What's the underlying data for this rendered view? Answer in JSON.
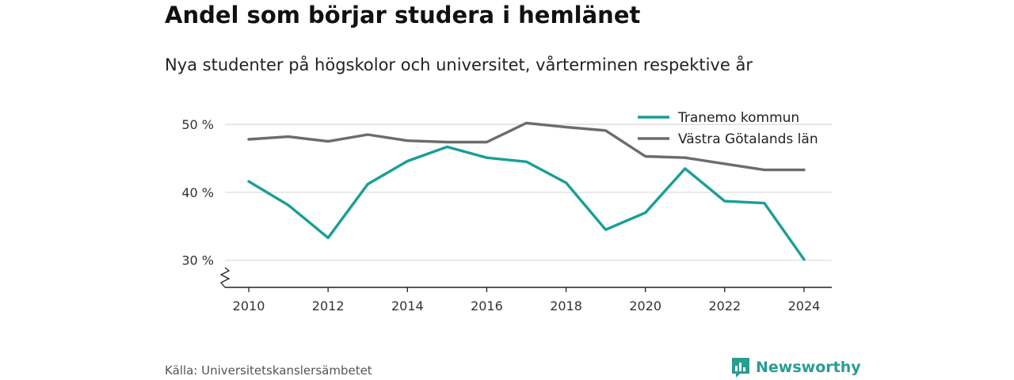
{
  "title": "Andel som börjar studera i hemlänet",
  "subtitle": "Nya studenter på högskolor och universitet, vårterminen respektive år",
  "source": "Källa: Universitetskanslersämbetet",
  "brand": {
    "name": "Newsworthy",
    "icon": "newsworthy-logo-icon",
    "color": "#2a9d92"
  },
  "chart_data": {
    "type": "line",
    "x": [
      2010,
      2011,
      2012,
      2013,
      2014,
      2015,
      2016,
      2017,
      2018,
      2019,
      2020,
      2021,
      2022,
      2023,
      2024
    ],
    "xticks": [
      2010,
      2012,
      2014,
      2016,
      2018,
      2020,
      2022,
      2024
    ],
    "xtick_labels": [
      "2010",
      "2012",
      "2014",
      "2016",
      "2018",
      "2020",
      "2022",
      "2024"
    ],
    "yticks": [
      30,
      40,
      50
    ],
    "ytick_labels": [
      "30 %",
      "40 %",
      "50 %"
    ],
    "ylim": [
      26,
      52
    ],
    "xlim": [
      2009.4,
      2024.7
    ],
    "y_axis_break": true,
    "grid": true,
    "legend_position": "top-right",
    "series": [
      {
        "name": "Tranemo kommun",
        "color": "#1a9e96",
        "values": [
          41.6,
          38.1,
          33.3,
          41.2,
          44.6,
          46.7,
          45.1,
          44.5,
          41.4,
          34.5,
          37.0,
          43.5,
          38.7,
          38.4,
          30.1
        ]
      },
      {
        "name": "Västra Götalands län",
        "color": "#6b6b72",
        "values": [
          47.8,
          48.2,
          47.5,
          48.5,
          47.6,
          47.4,
          47.4,
          50.2,
          49.6,
          49.1,
          45.3,
          45.1,
          44.2,
          43.3,
          43.3
        ]
      }
    ]
  }
}
